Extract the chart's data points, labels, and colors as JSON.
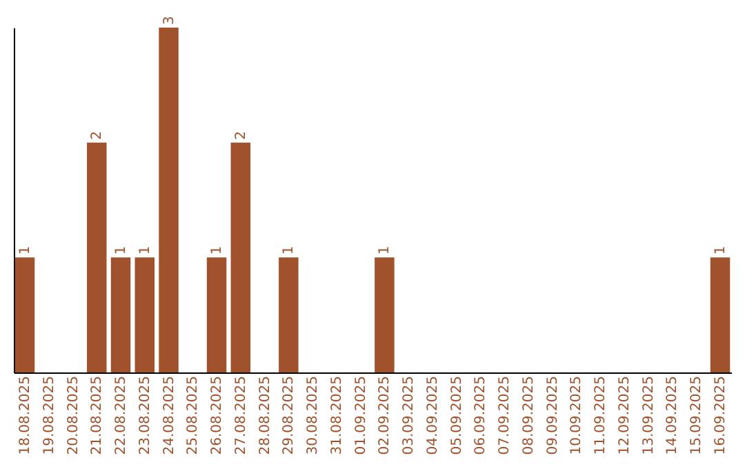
{
  "chart_data": {
    "type": "bar",
    "categories": [
      "18.08.2025",
      "19.08.2025",
      "20.08.2025",
      "21.08.2025",
      "22.08.2025",
      "23.08.2025",
      "24.08.2025",
      "25.08.2025",
      "26.08.2025",
      "27.08.2025",
      "28.08.2025",
      "29.08.2025",
      "30.08.2025",
      "31.08.2025",
      "01.09.2025",
      "02.09.2025",
      "03.09.2025",
      "04.09.2025",
      "05.09.2025",
      "06.09.2025",
      "07.09.2025",
      "08.09.2025",
      "09.09.2025",
      "10.09.2025",
      "11.09.2025",
      "12.09.2025",
      "13.09.2025",
      "14.09.2025",
      "15.09.2025",
      "16.09.2025"
    ],
    "values": [
      1,
      0,
      0,
      2,
      1,
      1,
      3,
      0,
      1,
      2,
      0,
      1,
      0,
      0,
      0,
      1,
      0,
      0,
      0,
      0,
      0,
      0,
      0,
      0,
      0,
      0,
      0,
      0,
      0,
      1
    ],
    "value_labels": [
      "1",
      null,
      null,
      "2",
      "1",
      "1",
      "3",
      null,
      "1",
      "2",
      null,
      "1",
      null,
      null,
      null,
      "1",
      null,
      null,
      null,
      null,
      null,
      null,
      null,
      null,
      null,
      null,
      null,
      null,
      null,
      "1"
    ],
    "color": "#a0522d",
    "grid": false
  }
}
